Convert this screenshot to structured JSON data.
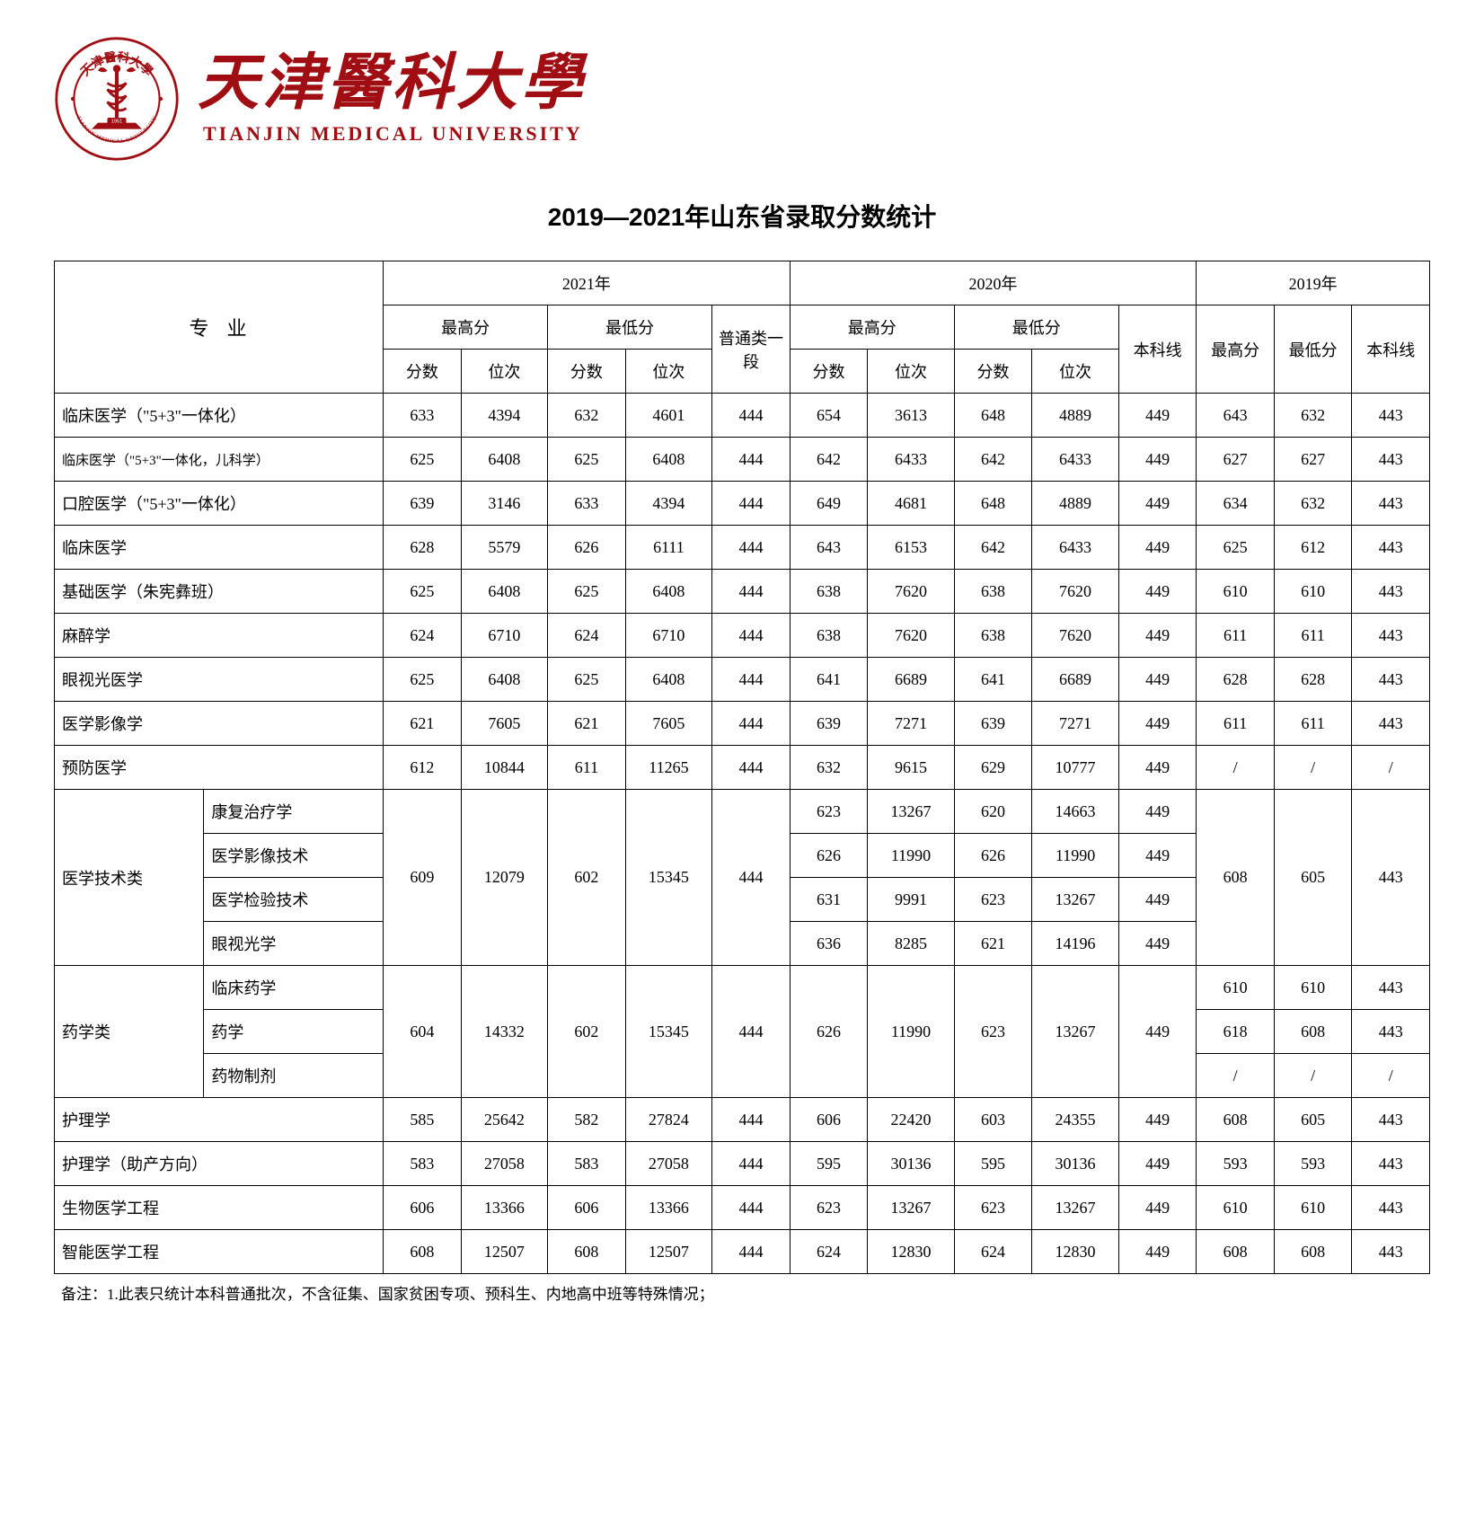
{
  "university": {
    "cn_name": "天津醫科大學",
    "en_name": "TIANJIN MEDICAL UNIVERSITY",
    "logo_color": "#a00e13",
    "logo_ring_text_top": "天津醫科大學",
    "logo_ring_text_bottom": "TIANJIN MEDICAL UNIVERSITY",
    "logo_year": "1951"
  },
  "page_title": "2019—2021年山东省录取分数统计",
  "table": {
    "header": {
      "major": "专业",
      "y2021": "2021年",
      "y2020": "2020年",
      "y2019": "2019年",
      "max": "最高分",
      "min": "最低分",
      "score": "分数",
      "rank": "位次",
      "line2021": "普通类一段",
      "line2020": "本科线",
      "max2019": "最高分",
      "min2019": "最低分",
      "line2019": "本科线"
    },
    "simple_rows": [
      {
        "major": "临床医学（\"5+3\"一体化）",
        "y21": [
          "633",
          "4394",
          "632",
          "4601",
          "444"
        ],
        "y20": [
          "654",
          "3613",
          "648",
          "4889",
          "449"
        ],
        "y19": [
          "643",
          "632",
          "443"
        ]
      },
      {
        "major": "临床医学（\"5+3\"一体化，儿科学）",
        "small": true,
        "y21": [
          "625",
          "6408",
          "625",
          "6408",
          "444"
        ],
        "y20": [
          "642",
          "6433",
          "642",
          "6433",
          "449"
        ],
        "y19": [
          "627",
          "627",
          "443"
        ]
      },
      {
        "major": "口腔医学（\"5+3\"一体化）",
        "y21": [
          "639",
          "3146",
          "633",
          "4394",
          "444"
        ],
        "y20": [
          "649",
          "4681",
          "648",
          "4889",
          "449"
        ],
        "y19": [
          "634",
          "632",
          "443"
        ]
      },
      {
        "major": "临床医学",
        "y21": [
          "628",
          "5579",
          "626",
          "6111",
          "444"
        ],
        "y20": [
          "643",
          "6153",
          "642",
          "6433",
          "449"
        ],
        "y19": [
          "625",
          "612",
          "443"
        ]
      },
      {
        "major": "基础医学（朱宪彝班）",
        "y21": [
          "625",
          "6408",
          "625",
          "6408",
          "444"
        ],
        "y20": [
          "638",
          "7620",
          "638",
          "7620",
          "449"
        ],
        "y19": [
          "610",
          "610",
          "443"
        ]
      },
      {
        "major": "麻醉学",
        "y21": [
          "624",
          "6710",
          "624",
          "6710",
          "444"
        ],
        "y20": [
          "638",
          "7620",
          "638",
          "7620",
          "449"
        ],
        "y19": [
          "611",
          "611",
          "443"
        ]
      },
      {
        "major": "眼视光医学",
        "y21": [
          "625",
          "6408",
          "625",
          "6408",
          "444"
        ],
        "y20": [
          "641",
          "6689",
          "641",
          "6689",
          "449"
        ],
        "y19": [
          "628",
          "628",
          "443"
        ]
      },
      {
        "major": "医学影像学",
        "y21": [
          "621",
          "7605",
          "621",
          "7605",
          "444"
        ],
        "y20": [
          "639",
          "7271",
          "639",
          "7271",
          "449"
        ],
        "y19": [
          "611",
          "611",
          "443"
        ]
      },
      {
        "major": "预防医学",
        "y21": [
          "612",
          "10844",
          "611",
          "11265",
          "444"
        ],
        "y20": [
          "632",
          "9615",
          "629",
          "10777",
          "449"
        ],
        "y19": [
          "/",
          "/",
          "/"
        ]
      }
    ],
    "group_tech": {
      "group_label": "医学技术类",
      "y21": [
        "609",
        "12079",
        "602",
        "15345",
        "444"
      ],
      "y19": [
        "608",
        "605",
        "443"
      ],
      "subs": [
        {
          "name": "康复治疗学",
          "y20": [
            "623",
            "13267",
            "620",
            "14663",
            "449"
          ]
        },
        {
          "name": "医学影像技术",
          "y20": [
            "626",
            "11990",
            "626",
            "11990",
            "449"
          ]
        },
        {
          "name": "医学检验技术",
          "y20": [
            "631",
            "9991",
            "623",
            "13267",
            "449"
          ]
        },
        {
          "name": "眼视光学",
          "y20": [
            "636",
            "8285",
            "621",
            "14196",
            "449"
          ]
        }
      ]
    },
    "group_pharm": {
      "group_label": "药学类",
      "y21": [
        "604",
        "14332",
        "602",
        "15345",
        "444"
      ],
      "y20": [
        "626",
        "11990",
        "623",
        "13267",
        "449"
      ],
      "subs": [
        {
          "name": "临床药学",
          "y19": [
            "610",
            "610",
            "443"
          ]
        },
        {
          "name": "药学",
          "y19": [
            "618",
            "608",
            "443"
          ]
        },
        {
          "name": "药物制剂",
          "y19": [
            "/",
            "/",
            "/"
          ]
        }
      ]
    },
    "tail_rows": [
      {
        "major": "护理学",
        "y21": [
          "585",
          "25642",
          "582",
          "27824",
          "444"
        ],
        "y20": [
          "606",
          "22420",
          "603",
          "24355",
          "449"
        ],
        "y19": [
          "608",
          "605",
          "443"
        ]
      },
      {
        "major": "护理学（助产方向）",
        "y21": [
          "583",
          "27058",
          "583",
          "27058",
          "444"
        ],
        "y20": [
          "595",
          "30136",
          "595",
          "30136",
          "449"
        ],
        "y19": [
          "593",
          "593",
          "443"
        ]
      },
      {
        "major": "生物医学工程",
        "y21": [
          "606",
          "13366",
          "606",
          "13366",
          "444"
        ],
        "y20": [
          "623",
          "13267",
          "623",
          "13267",
          "449"
        ],
        "y19": [
          "610",
          "610",
          "443"
        ]
      },
      {
        "major": "智能医学工程",
        "y21": [
          "608",
          "12507",
          "608",
          "12507",
          "444"
        ],
        "y20": [
          "624",
          "12830",
          "624",
          "12830",
          "449"
        ],
        "y19": [
          "608",
          "608",
          "443"
        ]
      }
    ]
  },
  "footnote": "备注：1.此表只统计本科普通批次，不含征集、国家贫困专项、预科生、内地高中班等特殊情况；"
}
